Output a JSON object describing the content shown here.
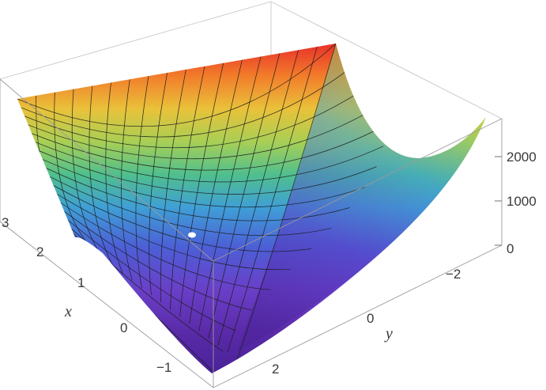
{
  "chart_data": {
    "type": "surface3d",
    "title": "",
    "colormap": "rainbow",
    "mesh": true,
    "box": true,
    "x_axis": {
      "label": "x",
      "range": [
        -1.5,
        3
      ],
      "ticks": [
        "3",
        "2",
        "1",
        "0",
        "−1"
      ]
    },
    "y_axis": {
      "label": "y",
      "range": [
        -3,
        3
      ],
      "ticks": [
        "−2",
        "0",
        "2"
      ]
    },
    "z_axis": {
      "label": "",
      "range": [
        0,
        2500
      ],
      "ticks": [
        "2000",
        "1000",
        "0"
      ]
    },
    "surface_samples": [
      {
        "x": 3,
        "y": 3,
        "z": 2500
      },
      {
        "x": 3,
        "y": -3,
        "z": 2500
      },
      {
        "x": 1.5,
        "y": 2.25,
        "z": 0
      },
      {
        "x": 0,
        "y": 0,
        "z": 1
      },
      {
        "x": -1.5,
        "y": 3,
        "z": 570
      },
      {
        "x": -1.5,
        "y": -3,
        "z": 2500
      }
    ]
  }
}
